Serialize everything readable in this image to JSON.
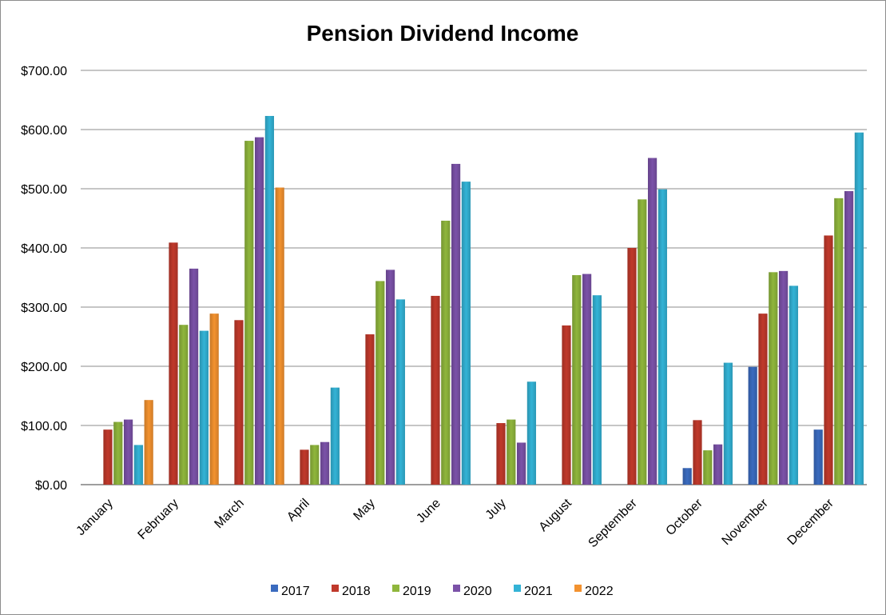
{
  "chart_data": {
    "type": "bar",
    "title": "Pension Dividend Income",
    "xlabel": "",
    "ylabel": "",
    "ylim": [
      0,
      700
    ],
    "yticks": [
      "$0.00",
      "$100.00",
      "$200.00",
      "$300.00",
      "$400.00",
      "$500.00",
      "$600.00",
      "$700.00"
    ],
    "grid": true,
    "legend": "bottom",
    "categories": [
      "January",
      "February",
      "March",
      "April",
      "May",
      "June",
      "July",
      "August",
      "September",
      "October",
      "November",
      "December"
    ],
    "series": [
      {
        "name": "2017",
        "color": "#3a6bbf",
        "values": [
          null,
          null,
          null,
          null,
          null,
          null,
          null,
          null,
          null,
          28,
          199,
          93
        ]
      },
      {
        "name": "2018",
        "color": "#c0392b",
        "values": [
          93,
          409,
          278,
          59,
          254,
          319,
          104,
          269,
          400,
          109,
          289,
          421
        ]
      },
      {
        "name": "2019",
        "color": "#8fb63c",
        "values": [
          106,
          270,
          581,
          67,
          344,
          446,
          110,
          354,
          482,
          58,
          359,
          484
        ]
      },
      {
        "name": "2020",
        "color": "#7b52a8",
        "values": [
          110,
          365,
          587,
          72,
          363,
          542,
          71,
          356,
          552,
          68,
          361,
          496
        ]
      },
      {
        "name": "2021",
        "color": "#33b3d6",
        "values": [
          67,
          260,
          623,
          164,
          313,
          512,
          174,
          320,
          499,
          206,
          336,
          595
        ]
      },
      {
        "name": "2022",
        "color": "#f3922f",
        "values": [
          143,
          289,
          502,
          null,
          null,
          null,
          null,
          null,
          null,
          null,
          null,
          null
        ]
      }
    ]
  }
}
